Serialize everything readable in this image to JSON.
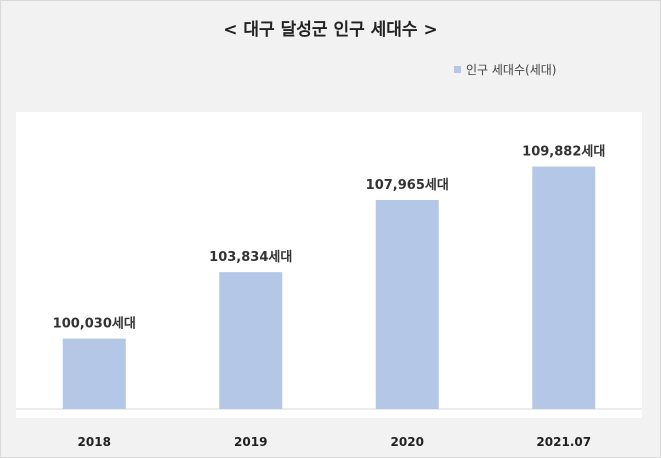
{
  "chart_data": {
    "type": "bar",
    "title": "< 대구 달성군 인구 세대수 >",
    "categories": [
      "2018",
      "2019",
      "2020",
      "2021.07"
    ],
    "series": [
      {
        "name": "인구 세대수(세대)",
        "values": [
          100030,
          103834,
          107965,
          109882
        ],
        "color": "#b4c7e7"
      }
    ],
    "data_labels": [
      "100,030세대",
      "103,834세대",
      "107,965세대",
      "109,882세대"
    ],
    "ylim": [
      96000,
      111000
    ],
    "legend_position": "top-right",
    "grid": false,
    "xlabel": "",
    "ylabel": ""
  }
}
